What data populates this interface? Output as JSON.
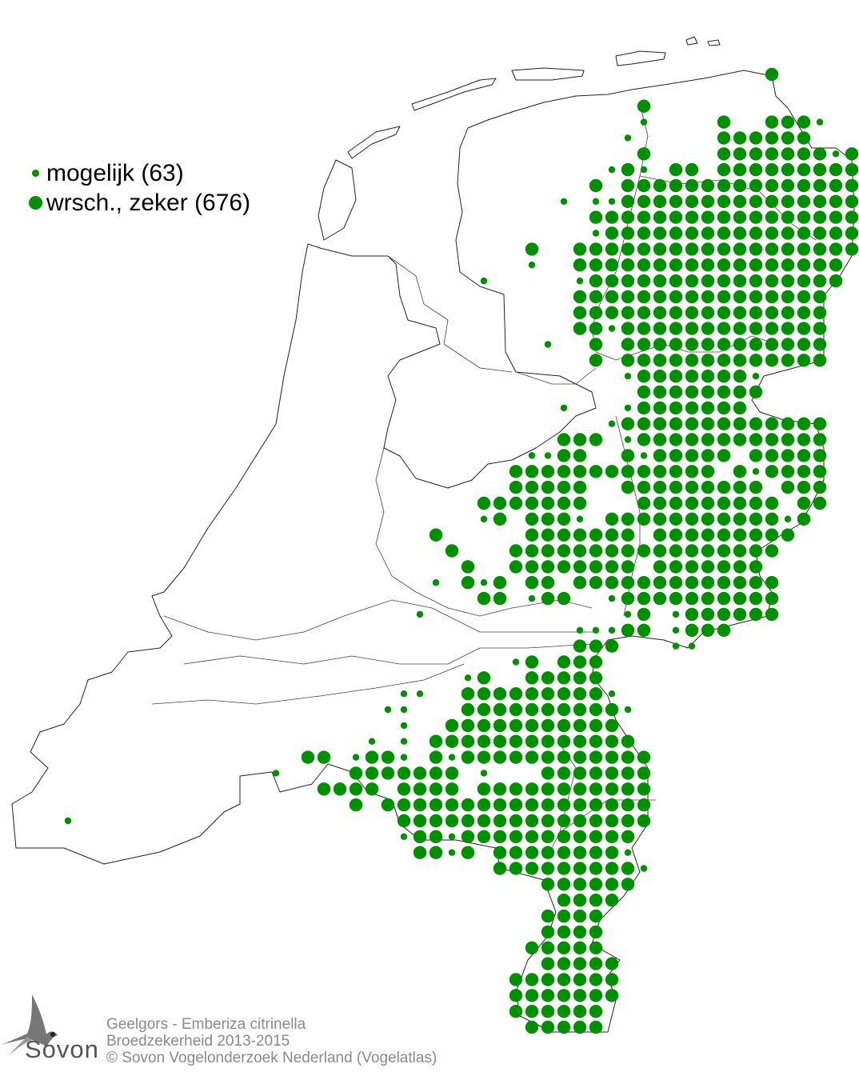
{
  "legend": {
    "items": [
      {
        "label": "mogelijk (63)",
        "symbol": "small-dot"
      },
      {
        "label": "wrsch., zeker (676)",
        "symbol": "large-dot"
      }
    ]
  },
  "colors": {
    "dot": "#008f00",
    "outline": "#222222",
    "footer_text": "#8a8a8a"
  },
  "footer": {
    "species": "Geelgors - Emberiza citrinella",
    "subtitle": "Broedzekerheid 2013-2015",
    "copyright": "© Sovon Vogelonderzoek Nederland (Vogelatlas)"
  },
  "logo": {
    "text": "Sovon",
    "icon": "swallow-icon"
  },
  "atlas_grid": {
    "codes": {
      "s": "mogelijk",
      "L": "wrsch., zeker"
    },
    "rows": [
      "L44",
      "",
      "L36",
      "s36 L41 L44-46 s47",
      "s35 L41-46",
      "L36 L41-47 s48 L49",
      "s34 L35 s36 L38-39 L41-49",
      "L33 L35-49",
      "s31 s33 s34 L35-49",
      "L33-49",
      "s33 L34-49",
      "L29 L32-49",
      "s29 L32-48",
      "s26 s32 L33-48",
      "L32-47",
      "L32-47",
      "L32-33 s34 L35-47",
      "s30 L33 L35-47",
      "L33 L35-47",
      "s35 L36-42 s43",
      "L36-43",
      "s31 s35 L36-42",
      "s34 L35-47",
      "L31-33 s35 L36-47",
      "s29 s30 L31-32 L35 s36 L37-41 L43-47",
      "L28-40 L42 s43 L44-47",
      "L28-32 L35-43 L45-47",
      "L26-32 L36-44 L46-47",
      "s26 L27 L29-31 s32 L34-44 s45 L46",
      "L23 L29-35 L37-45",
      "L24 L28-44",
      "L25 L28-35 L37-43",
      "s23 L25 s26 L27 L29-30 L32-44",
      "L26-27 s29 L30-31 s34 L35-44",
      "s22 s35 L36 s38 L39-44",
      "s32-34 L35-36 s38 L39-41",
      "L32-34 s38-39",
      "s28 L29 L31-33",
      "s25 L26 L29-33",
      "s21-22 L25-33 s34",
      "s20-21 L25-34 s35",
      "s21 L24-34",
      "s19 s21 L23-35",
      "L15-16 s18 L19-20 s21 L23 s24 L25-36",
      "s13 L18-24 s26 L30-36",
      "L16-19 L21-24 L26-36",
      "L18 L20-36",
      "s0 L21-36",
      "s21 L22-23 s24 L25-35",
      "L22-23 s24 L25 L27-34 s35",
      "L27-35 s36",
      "L30-35",
      "L31-34",
      "L30-33",
      "L30-33",
      "L29-33",
      "L30-34",
      "L28-34",
      "L28-34",
      "L28-33",
      "L29-33"
    ]
  }
}
